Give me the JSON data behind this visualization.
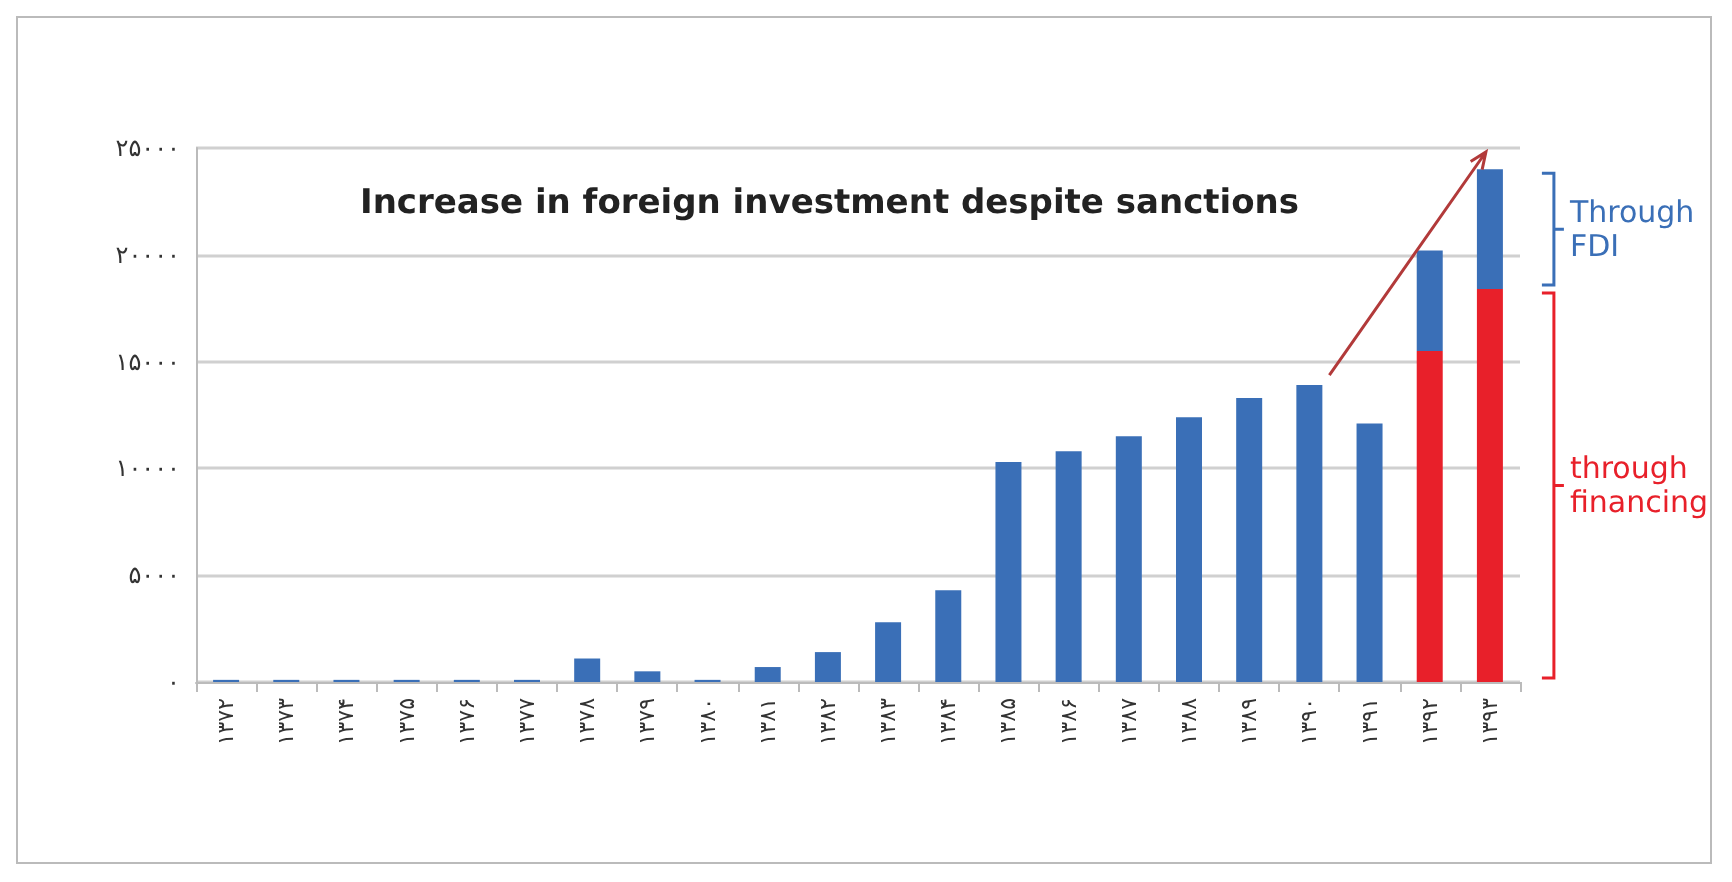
{
  "chart_data": {
    "type": "bar",
    "title": "Increase in foreign investment despite sanctions",
    "categories": [
      "۱۳۷۲",
      "۱۳۷۳",
      "۱۳۷۴",
      "۱۳۷۵",
      "۱۳۷۶",
      "۱۳۷۷",
      "۱۳۷۸",
      "۱۳۷۹",
      "۱۳۸۰",
      "۱۳۸۱",
      "۱۳۸۲",
      "۱۳۸۳",
      "۱۳۸۴",
      "۱۳۸۵",
      "۱۳۸۶",
      "۱۳۸۷",
      "۱۳۸۸",
      "۱۳۸۹",
      "۱۳۹۰",
      "۱۳۹۱",
      "۱۳۹۲",
      "۱۳۹۳"
    ],
    "stacked": true,
    "series": [
      {
        "name": "through financing",
        "color": "#e8202a",
        "values": [
          null,
          null,
          null,
          null,
          null,
          null,
          null,
          null,
          null,
          null,
          null,
          null,
          null,
          null,
          null,
          null,
          null,
          null,
          null,
          null,
          15500,
          18400
        ]
      },
      {
        "name": "Through FDI",
        "color": "#3a6fb7",
        "values": [
          100,
          100,
          100,
          100,
          100,
          100,
          1100,
          500,
          100,
          700,
          1400,
          2800,
          4300,
          10300,
          10800,
          11500,
          12400,
          13300,
          13900,
          12100,
          4700,
          5600
        ]
      }
    ],
    "ylim": [
      0,
      25000
    ],
    "yticks": [
      {
        "value": 0,
        "label": "۰"
      },
      {
        "value": 5000,
        "label": "۵۰۰۰"
      },
      {
        "value": 10000,
        "label": "۱۰۰۰۰"
      },
      {
        "value": 15000,
        "label": "۱۵۰۰۰"
      },
      {
        "value": 20000,
        "label": "۲۰۰۰۰"
      },
      {
        "value": 25000,
        "label": "۲۵۰۰۰"
      }
    ],
    "grid": "y",
    "legend": "right"
  }
}
